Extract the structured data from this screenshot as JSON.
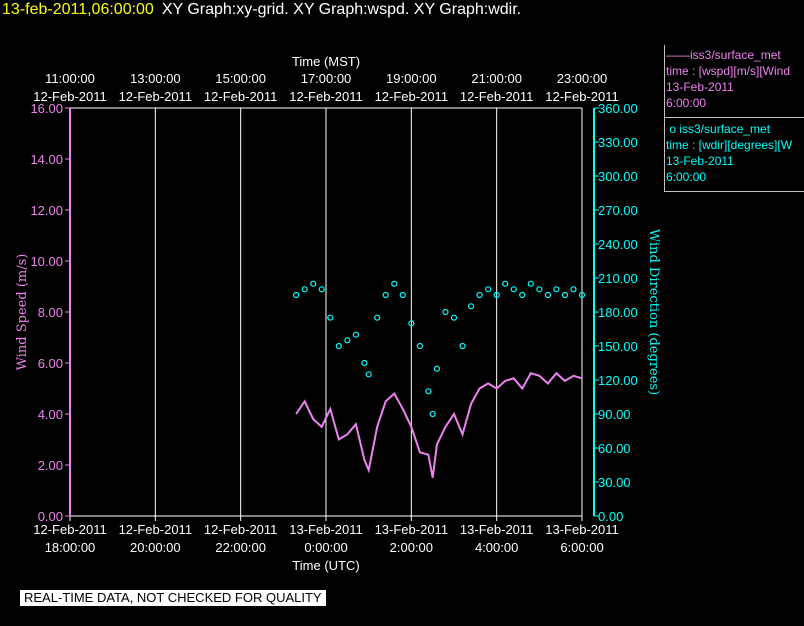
{
  "header": {
    "timestamp": "13-feb-2011,06:00:00",
    "graphs": "XY Graph:xy-grid.  XY Graph:wspd.  XY Graph:wdir."
  },
  "legend": {
    "wspd": {
      "series": "iss3/surface_met",
      "expr": "time : [wspd][m/s][Wind",
      "date": "13-Feb-2011",
      "time": "6:00:00",
      "color": "#ee82ee"
    },
    "wdir": {
      "series": "iss3/surface_met",
      "expr": "time : [wdir][degrees][W",
      "date": "13-Feb-2011",
      "time": "6:00:00",
      "color": "#00ffff"
    }
  },
  "notice": "REAL-TIME DATA, NOT CHECKED FOR QUALITY",
  "chart_data": {
    "type": "line",
    "top_axis": {
      "label": "Time (MST)",
      "ticks": [
        {
          "time": "11:00:00",
          "date": "12-Feb-2011"
        },
        {
          "time": "13:00:00",
          "date": "12-Feb-2011"
        },
        {
          "time": "15:00:00",
          "date": "12-Feb-2011"
        },
        {
          "time": "17:00:00",
          "date": "12-Feb-2011"
        },
        {
          "time": "19:00:00",
          "date": "12-Feb-2011"
        },
        {
          "time": "21:00:00",
          "date": "12-Feb-2011"
        },
        {
          "time": "23:00:00",
          "date": "12-Feb-2011"
        }
      ]
    },
    "bottom_axis": {
      "label": "Time (UTC)",
      "ticks": [
        {
          "date": "12-Feb-2011",
          "time": "18:00:00"
        },
        {
          "date": "12-Feb-2011",
          "time": "20:00:00"
        },
        {
          "date": "12-Feb-2011",
          "time": "22:00:00"
        },
        {
          "date": "13-Feb-2011",
          "time": "0:00:00"
        },
        {
          "date": "13-Feb-2011",
          "time": "2:00:00"
        },
        {
          "date": "13-Feb-2011",
          "time": "4:00:00"
        },
        {
          "date": "13-Feb-2011",
          "time": "6:00:00"
        }
      ]
    },
    "left_axis": {
      "label": "Wind Speed (m/s)",
      "range": [
        0,
        16
      ],
      "ticks": [
        "0.00",
        "2.00",
        "4.00",
        "6.00",
        "8.00",
        "10.00",
        "12.00",
        "14.00",
        "16.00"
      ]
    },
    "right_axis": {
      "label": "Wind Direction (degrees)",
      "range": [
        0,
        360
      ],
      "ticks": [
        "0.00",
        "30.00",
        "60.00",
        "90.00",
        "120.00",
        "150.00",
        "180.00",
        "210.00",
        "240.00",
        "270.00",
        "300.00",
        "330.00",
        "360.00"
      ]
    },
    "x_range_utc_hours": [
      18,
      30
    ],
    "vertical_grid": true,
    "series": [
      {
        "color": "#ee82ee",
        "style": "line",
        "axis": "left",
        "points": [
          [
            23.3,
            4.0
          ],
          [
            23.5,
            4.5
          ],
          [
            23.7,
            3.8
          ],
          [
            23.9,
            3.5
          ],
          [
            24.1,
            4.2
          ],
          [
            24.3,
            3.0
          ],
          [
            24.5,
            3.2
          ],
          [
            24.7,
            3.6
          ],
          [
            24.9,
            2.2
          ],
          [
            25.0,
            1.8
          ],
          [
            25.2,
            3.5
          ],
          [
            25.4,
            4.5
          ],
          [
            25.6,
            4.8
          ],
          [
            25.8,
            4.2
          ],
          [
            26.0,
            3.5
          ],
          [
            26.2,
            2.5
          ],
          [
            26.4,
            2.4
          ],
          [
            26.5,
            1.5
          ],
          [
            26.6,
            2.8
          ],
          [
            26.8,
            3.5
          ],
          [
            27.0,
            4.0
          ],
          [
            27.2,
            3.2
          ],
          [
            27.4,
            4.4
          ],
          [
            27.6,
            5.0
          ],
          [
            27.8,
            5.2
          ],
          [
            28.0,
            5.0
          ],
          [
            28.2,
            5.3
          ],
          [
            28.4,
            5.4
          ],
          [
            28.6,
            5.0
          ],
          [
            28.8,
            5.6
          ],
          [
            29.0,
            5.5
          ],
          [
            29.2,
            5.2
          ],
          [
            29.4,
            5.6
          ],
          [
            29.6,
            5.3
          ],
          [
            29.8,
            5.5
          ],
          [
            30.0,
            5.4
          ]
        ]
      },
      {
        "color": "#00ffff",
        "style": "markers",
        "axis": "right",
        "points": [
          [
            23.3,
            195
          ],
          [
            23.5,
            200
          ],
          [
            23.7,
            205
          ],
          [
            23.9,
            200
          ],
          [
            24.1,
            175
          ],
          [
            24.3,
            150
          ],
          [
            24.5,
            155
          ],
          [
            24.7,
            160
          ],
          [
            24.9,
            135
          ],
          [
            25.0,
            125
          ],
          [
            25.2,
            175
          ],
          [
            25.4,
            195
          ],
          [
            25.6,
            205
          ],
          [
            25.8,
            195
          ],
          [
            26.0,
            170
          ],
          [
            26.2,
            150
          ],
          [
            26.4,
            110
          ],
          [
            26.5,
            90
          ],
          [
            26.6,
            130
          ],
          [
            26.8,
            180
          ],
          [
            27.0,
            175
          ],
          [
            27.2,
            150
          ],
          [
            27.4,
            185
          ],
          [
            27.6,
            195
          ],
          [
            27.8,
            200
          ],
          [
            28.0,
            195
          ],
          [
            28.2,
            205
          ],
          [
            28.4,
            200
          ],
          [
            28.6,
            195
          ],
          [
            28.8,
            205
          ],
          [
            29.0,
            200
          ],
          [
            29.2,
            195
          ],
          [
            29.4,
            200
          ],
          [
            29.6,
            195
          ],
          [
            29.8,
            200
          ],
          [
            30.0,
            195
          ]
        ]
      }
    ]
  }
}
